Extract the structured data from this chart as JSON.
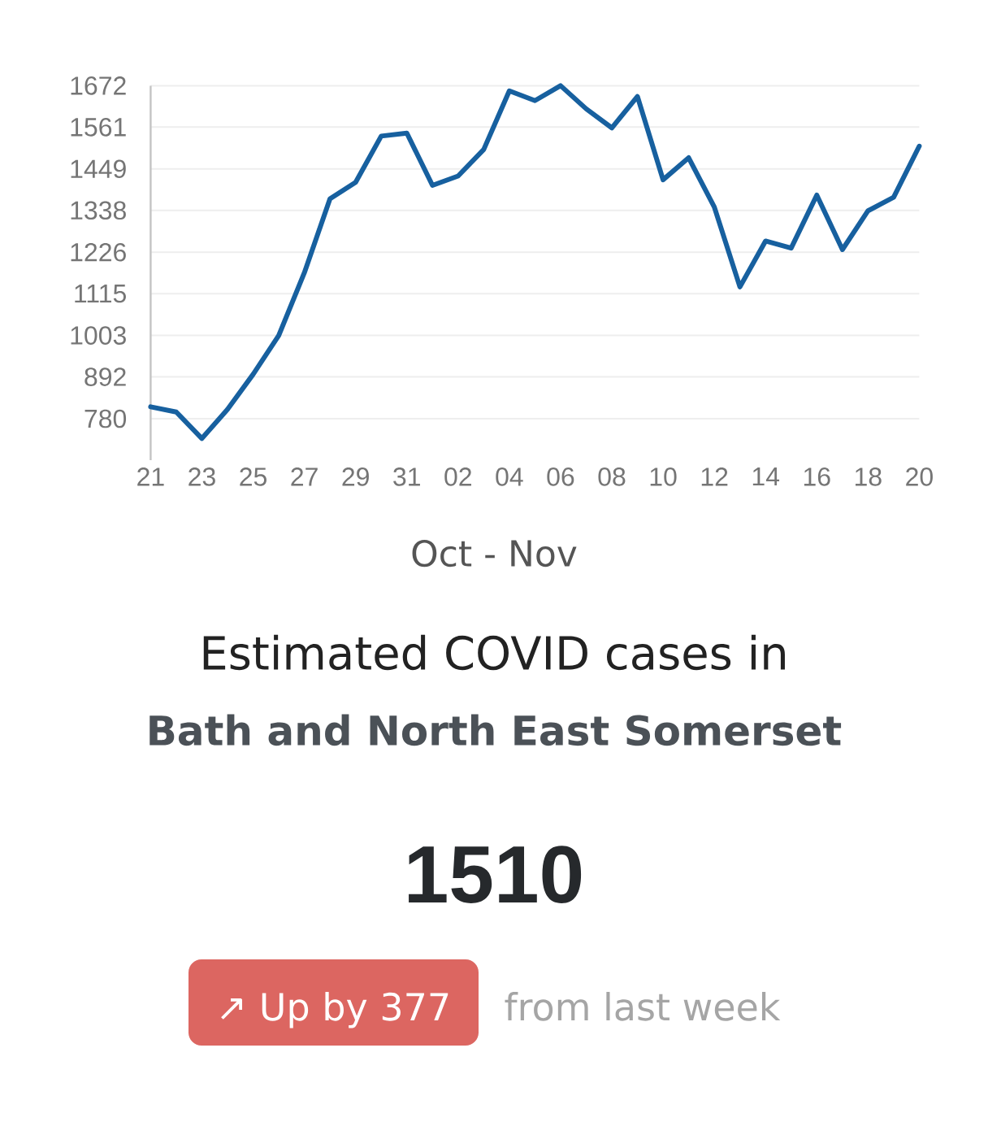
{
  "chart_data": {
    "type": "line",
    "title": "Estimated COVID cases in",
    "subtitle": "Bath and North East Somerset",
    "xlabel": "Oct - Nov",
    "categories": [
      "21",
      null,
      "23",
      null,
      "25",
      null,
      "27",
      null,
      "29",
      null,
      "31",
      null,
      "02",
      null,
      "04",
      null,
      "06",
      null,
      "08",
      null,
      "10",
      null,
      "12",
      null,
      "14",
      null,
      "16",
      null,
      "18",
      null,
      "20"
    ],
    "series": [
      {
        "color": "#17609f",
        "values": [
          812,
          798,
          727,
          805,
          899,
          1003,
          1171,
          1369,
          1413,
          1537,
          1545,
          1405,
          1430,
          1501,
          1658,
          1632,
          1672,
          1610,
          1559,
          1643,
          1420,
          1479,
          1347,
          1133,
          1256,
          1237,
          1379,
          1233,
          1337,
          1373,
          1510
        ]
      }
    ],
    "ylim": [
      669,
      1672
    ],
    "yticks": [
      780,
      892,
      1003,
      1115,
      1226,
      1338,
      1449,
      1561,
      1672
    ],
    "grid": "y",
    "annotations": [
      "1510",
      "↗ Up by 377",
      "from last week"
    ]
  }
}
